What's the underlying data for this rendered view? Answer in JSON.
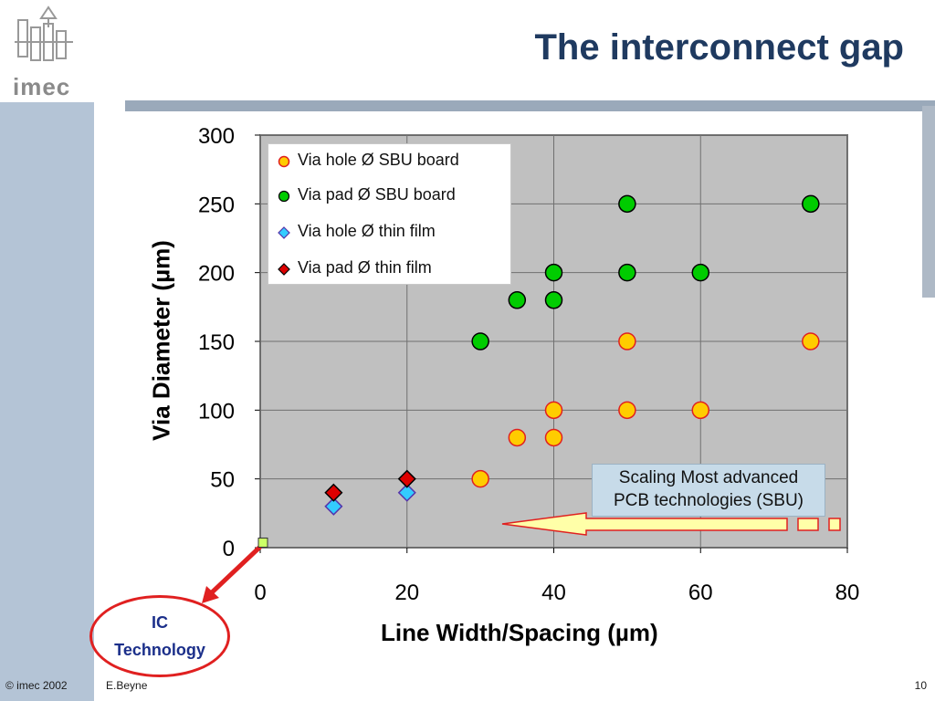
{
  "slide": {
    "title": "The interconnect gap",
    "logo_text": "imec",
    "footer_left": "© imec 2002",
    "footer_author": "E.Beyne",
    "page_number": "10"
  },
  "annotations": {
    "callout_line1": "Scaling Most advanced",
    "callout_line2": "PCB technologies (SBU)",
    "ic_line1": "IC",
    "ic_line2": "Technology"
  },
  "colors": {
    "title": "#1f3a60",
    "plot_bg": "#c0c0c0",
    "via_hole_sbu": "#ffcc00",
    "via_pad_sbu": "#00cc00",
    "via_hole_thin": "#33ccff",
    "via_pad_thin": "#dd0000",
    "arrow_fill": "#ffffa8",
    "arrow_stroke": "#e02020"
  },
  "chart_data": {
    "type": "scatter",
    "title": "",
    "xlabel": "Line Width/Spacing (µm)",
    "ylabel": "Via Diameter (µm)",
    "xlim": [
      0,
      80
    ],
    "ylim": [
      0,
      300
    ],
    "xticks": [
      "0",
      "20",
      "40",
      "60",
      "80"
    ],
    "yticks": [
      "0",
      "50",
      "100",
      "150",
      "200",
      "250",
      "300"
    ],
    "grid": true,
    "legend_position": "top-left",
    "series": [
      {
        "name": "Via hole Ø SBU board",
        "marker": "circle",
        "color": "#ffcc00",
        "points": [
          [
            30,
            50
          ],
          [
            35,
            80
          ],
          [
            40,
            80
          ],
          [
            40,
            100
          ],
          [
            50,
            100
          ],
          [
            60,
            100
          ],
          [
            50,
            150
          ],
          [
            75,
            150
          ]
        ]
      },
      {
        "name": "Via pad Ø SBU board",
        "marker": "circle",
        "color": "#00cc00",
        "points": [
          [
            30,
            150
          ],
          [
            35,
            180
          ],
          [
            40,
            180
          ],
          [
            40,
            200
          ],
          [
            50,
            200
          ],
          [
            60,
            200
          ],
          [
            50,
            250
          ],
          [
            75,
            250
          ]
        ]
      },
      {
        "name": "Via hole Ø thin film",
        "marker": "diamond",
        "color": "#33ccff",
        "points": [
          [
            10,
            30
          ],
          [
            20,
            40
          ]
        ]
      },
      {
        "name": "Via pad Ø thin film",
        "marker": "diamond",
        "color": "#dd0000",
        "points": [
          [
            10,
            40
          ],
          [
            20,
            50
          ]
        ]
      }
    ],
    "ic_point": [
      0,
      3
    ]
  }
}
